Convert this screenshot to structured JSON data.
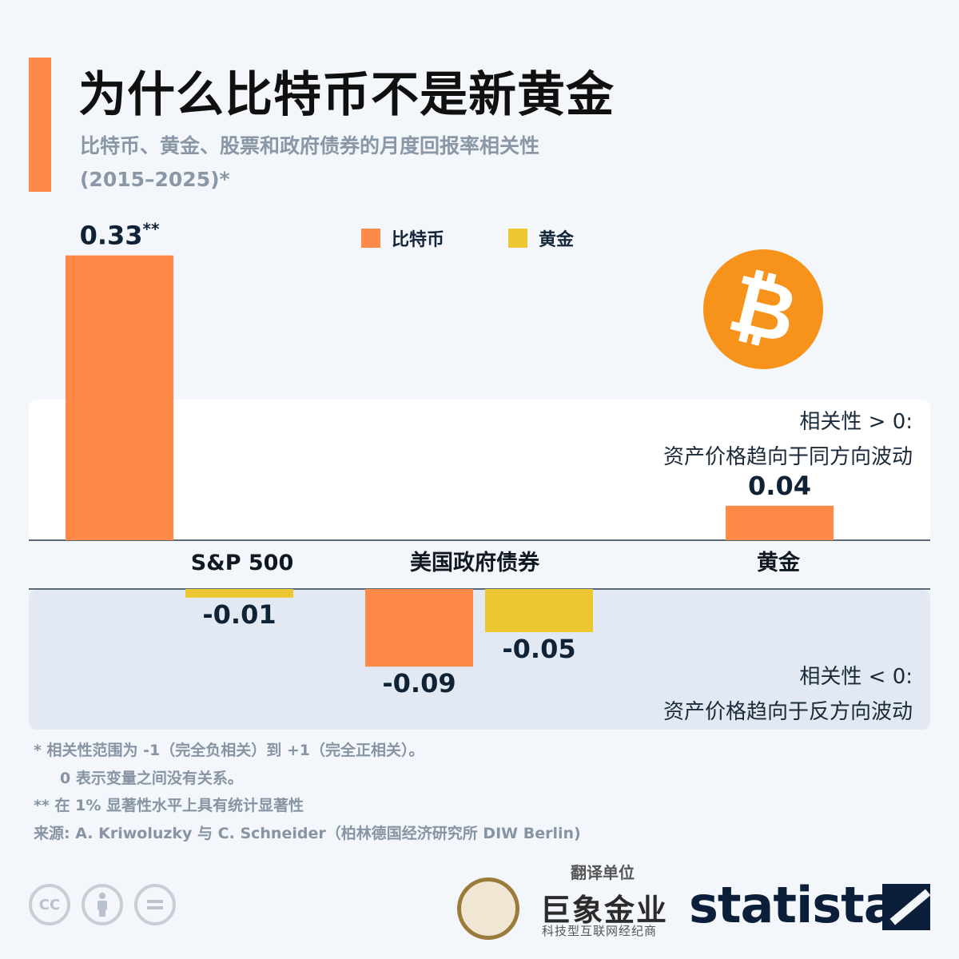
{
  "header": {
    "title": "为什么比特币不是新黄金",
    "subtitle_line1": "比特币、黄金、股票和政府债券的月度回报率相关性",
    "subtitle_line2": "(2015–2025)*"
  },
  "colors": {
    "bitcoin": "#ff8a48",
    "gold": "#ecc630",
    "accent": "#ff8a48",
    "text": "#0f2236"
  },
  "chart_data": {
    "type": "bar",
    "title": "为什么比特币不是新黄金",
    "subtitle": "比特币、黄金、股票和政府债券的月度回报率相关性 (2015–2025)*",
    "categories": [
      "S&P 500",
      "美国政府债券",
      "黄金"
    ],
    "series": [
      {
        "name": "比特币",
        "values": [
          0.33,
          -0.09,
          0.04
        ],
        "labels": [
          "0.33",
          "-0.09",
          "0.04"
        ]
      },
      {
        "name": "黄金",
        "values": [
          -0.01,
          -0.05,
          null
        ],
        "labels": [
          "-0.01",
          "-0.05",
          ""
        ]
      }
    ],
    "significance_marks": [
      "**",
      "",
      ""
    ],
    "ylim": [
      -0.15,
      0.35
    ],
    "legend": "top-center",
    "grid": false,
    "icons": [
      "bitcoin-logo-icon"
    ],
    "positive_zone": {
      "line1": "相关性 > 0:",
      "line2": "资产价格趋向于同方向波动"
    },
    "negative_zone": {
      "line1": "相关性 < 0:",
      "line2": "资产价格趋向于反方向波动"
    }
  },
  "footnotes": {
    "note1": "*   相关性范围为 -1（完全负相关）到 +1（完全正相关）。",
    "note1b": "0 表示变量之间没有关系。",
    "note2": "**  在 1% 显著性水平上具有统计显著性",
    "source": "来源: A. Kriwoluzky 与 C. Schneider（柏林德国经济研究所 DIW Berlin)"
  },
  "footer": {
    "license_icons": [
      "cc-icon",
      "attribution-icon",
      "no-derivatives-icon"
    ],
    "cc_text": "CC",
    "translator_label": "翻译单位",
    "translator_name": "巨象金业",
    "translator_tagline": "科技型互联网经纪商",
    "publisher": "statista"
  }
}
